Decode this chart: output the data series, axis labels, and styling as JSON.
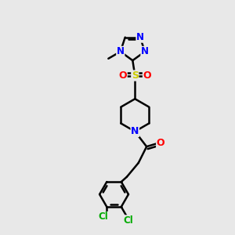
{
  "background_color": "#e8e8e8",
  "bond_color": "#000000",
  "atom_colors": {
    "N": "#0000ff",
    "O": "#ff0000",
    "S": "#cccc00",
    "Cl": "#00aa00",
    "C": "#000000"
  },
  "figsize": [
    3.0,
    3.0
  ],
  "dpi": 100,
  "xlim": [
    0,
    10
  ],
  "ylim": [
    0,
    10
  ]
}
